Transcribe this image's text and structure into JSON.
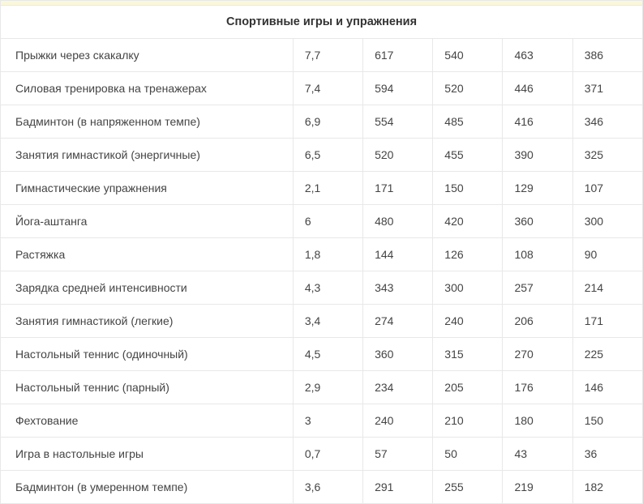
{
  "table": {
    "header": "Спортивные игры и упражнения",
    "rows": [
      {
        "name": "Прыжки через скакалку",
        "v1": "7,7",
        "v2": "617",
        "v3": "540",
        "v4": "463",
        "v5": "386"
      },
      {
        "name": "Силовая тренировка на тренажерах",
        "v1": "7,4",
        "v2": "594",
        "v3": "520",
        "v4": "446",
        "v5": "371"
      },
      {
        "name": "Бадминтон (в напряженном темпе)",
        "v1": "6,9",
        "v2": "554",
        "v3": "485",
        "v4": "416",
        "v5": "346"
      },
      {
        "name": "Занятия гимнастикой (энергичные)",
        "v1": "6,5",
        "v2": "520",
        "v3": "455",
        "v4": "390",
        "v5": "325"
      },
      {
        "name": "Гимнастические упражнения",
        "v1": "2,1",
        "v2": "171",
        "v3": "150",
        "v4": "129",
        "v5": "107"
      },
      {
        "name": "Йога-аштанга",
        "v1": "6",
        "v2": "480",
        "v3": "420",
        "v4": "360",
        "v5": "300"
      },
      {
        "name": "Растяжка",
        "v1": "1,8",
        "v2": "144",
        "v3": "126",
        "v4": "108",
        "v5": "90"
      },
      {
        "name": "Зарядка средней интенсивности",
        "v1": "4,3",
        "v2": "343",
        "v3": "300",
        "v4": "257",
        "v5": "214"
      },
      {
        "name": "Занятия гимнастикой (легкие)",
        "v1": "3,4",
        "v2": "274",
        "v3": "240",
        "v4": "206",
        "v5": "171"
      },
      {
        "name": "Настольный теннис (одиночный)",
        "v1": "4,5",
        "v2": "360",
        "v3": "315",
        "v4": "270",
        "v5": "225"
      },
      {
        "name": "Настольный теннис (парный)",
        "v1": "2,9",
        "v2": "234",
        "v3": "205",
        "v4": "176",
        "v5": "146"
      },
      {
        "name": "Фехтование",
        "v1": "3",
        "v2": "240",
        "v3": "210",
        "v4": "180",
        "v5": "150"
      },
      {
        "name": "Игра в настольные игры",
        "v1": "0,7",
        "v2": "57",
        "v3": "50",
        "v4": "43",
        "v5": "36"
      },
      {
        "name": "Бадминтон (в умеренном темпе)",
        "v1": "3,6",
        "v2": "291",
        "v3": "255",
        "v4": "219",
        "v5": "182"
      }
    ],
    "column_widths": {
      "name": 360,
      "value_each": 86
    },
    "border_color": "#e8e8e8",
    "text_color": "#444444",
    "header_bg": "#fbf8d9",
    "font_size": 14,
    "header_font_size": 14.5
  }
}
